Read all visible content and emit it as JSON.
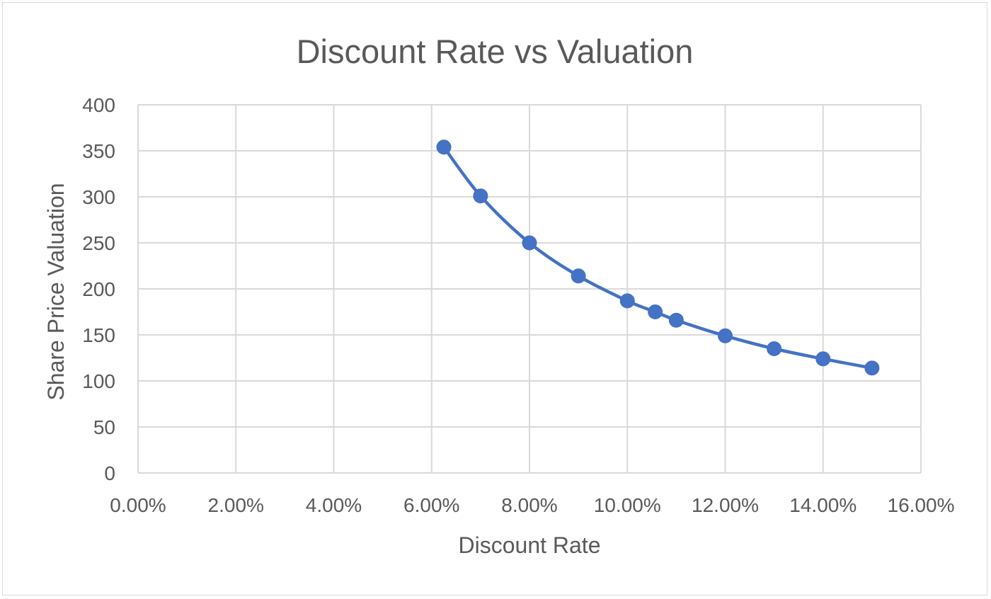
{
  "chart_data": {
    "type": "scatter",
    "title": "Discount Rate vs Valuation",
    "xlabel": "Discount Rate",
    "ylabel": "Share Price Valuation",
    "xlim": [
      0,
      0.16
    ],
    "ylim": [
      0,
      400
    ],
    "x_ticks": [
      0,
      0.02,
      0.04,
      0.06,
      0.08,
      0.1,
      0.12,
      0.14,
      0.16
    ],
    "x_tick_labels": [
      "0.00%",
      "2.00%",
      "4.00%",
      "6.00%",
      "8.00%",
      "10.00%",
      "12.00%",
      "14.00%",
      "16.00%"
    ],
    "y_ticks": [
      0,
      50,
      100,
      150,
      200,
      250,
      300,
      350,
      400
    ],
    "y_tick_labels": [
      "0",
      "50",
      "100",
      "150",
      "200",
      "250",
      "300",
      "350",
      "400"
    ],
    "grid": true,
    "smooth_line": true,
    "marker": "circle",
    "color": "#4472c4",
    "series": [
      {
        "x": [
          0.0625,
          0.07,
          0.08,
          0.09,
          0.1,
          0.1057,
          0.11,
          0.12,
          0.13,
          0.14,
          0.15
        ],
        "y": [
          354,
          301,
          250,
          214,
          187,
          175,
          166,
          149,
          135,
          124,
          114
        ]
      }
    ]
  }
}
